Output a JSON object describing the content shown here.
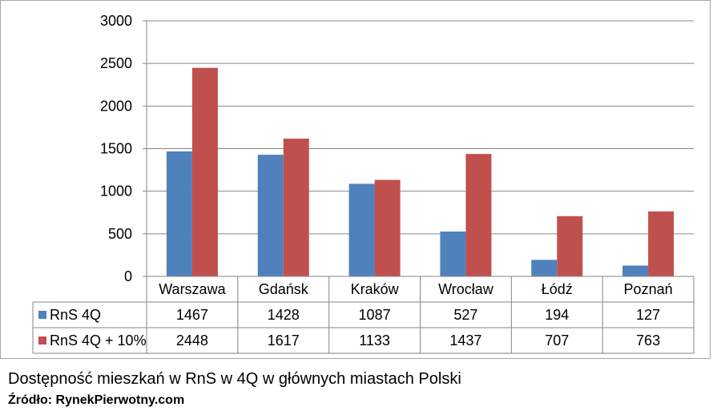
{
  "chart_data": {
    "type": "bar",
    "categories": [
      "Warszawa",
      "Gdańsk",
      "Kraków",
      "Wrocław",
      "Łódź",
      "Poznań"
    ],
    "series": [
      {
        "name": "RnS 4Q",
        "values": [
          1467,
          1428,
          1087,
          527,
          194,
          127
        ],
        "color": "#4f81bd"
      },
      {
        "name": "RnS 4Q + 10%",
        "values": [
          2448,
          1617,
          1133,
          1437,
          707,
          763
        ],
        "color": "#c0504d"
      }
    ],
    "ylim": [
      0,
      3000
    ],
    "yticks": [
      "0",
      "500",
      "1000",
      "1500",
      "2000",
      "2500",
      "3000"
    ],
    "grid": true,
    "data_table": true
  },
  "caption": "Dostępność mieszkań w RnS w 4Q w głównych miastach Polski",
  "source": "Źródło: RynekPierwotny.com"
}
